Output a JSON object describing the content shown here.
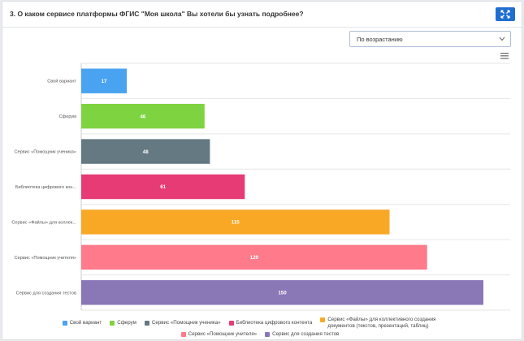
{
  "header": {
    "title": "3. О каком сервисе платформы ФГИС \"Моя школа\" Вы хотели бы узнать подробнее?"
  },
  "sort": {
    "selected": "По возрастанию"
  },
  "chart_data": {
    "type": "bar",
    "orientation": "horizontal",
    "categories": [
      "Свой вариант",
      "Сферум",
      "Сервис «Помощник ученика»",
      "Библиотека цифрового кон...",
      "Сервис «Файлы» для коллек...",
      "Сервис «Помощник учителя»",
      "Сервис для создания тестов"
    ],
    "values": [
      17,
      46,
      48,
      61,
      115,
      129,
      150
    ],
    "data_labels": [
      "17",
      "46",
      "48",
      "61",
      "115",
      "129",
      "150"
    ],
    "colors": [
      "#4aa3f0",
      "#7ed340",
      "#647982",
      "#e63b74",
      "#f9a825",
      "#ff7a8a",
      "#8a77b6"
    ],
    "xlim": [
      0,
      160
    ],
    "grid": true,
    "legend_position": "bottom",
    "legend": [
      {
        "label": "Свой вариант",
        "color": "#4aa3f0"
      },
      {
        "label": "Сферум",
        "color": "#7ed340"
      },
      {
        "label": "Сервис «Помощник ученика»",
        "color": "#647982"
      },
      {
        "label": "Библиотека цифрового контента",
        "color": "#e63b74"
      },
      {
        "label": "Сервис «Файлы» для коллективного создания документов (текстов, презентаций, таблиц)",
        "color": "#f9a825"
      },
      {
        "label": "Сервис «Помощник учителя»",
        "color": "#ff7a8a"
      },
      {
        "label": "Сервис для создания тестов",
        "color": "#8a77b6"
      }
    ]
  }
}
